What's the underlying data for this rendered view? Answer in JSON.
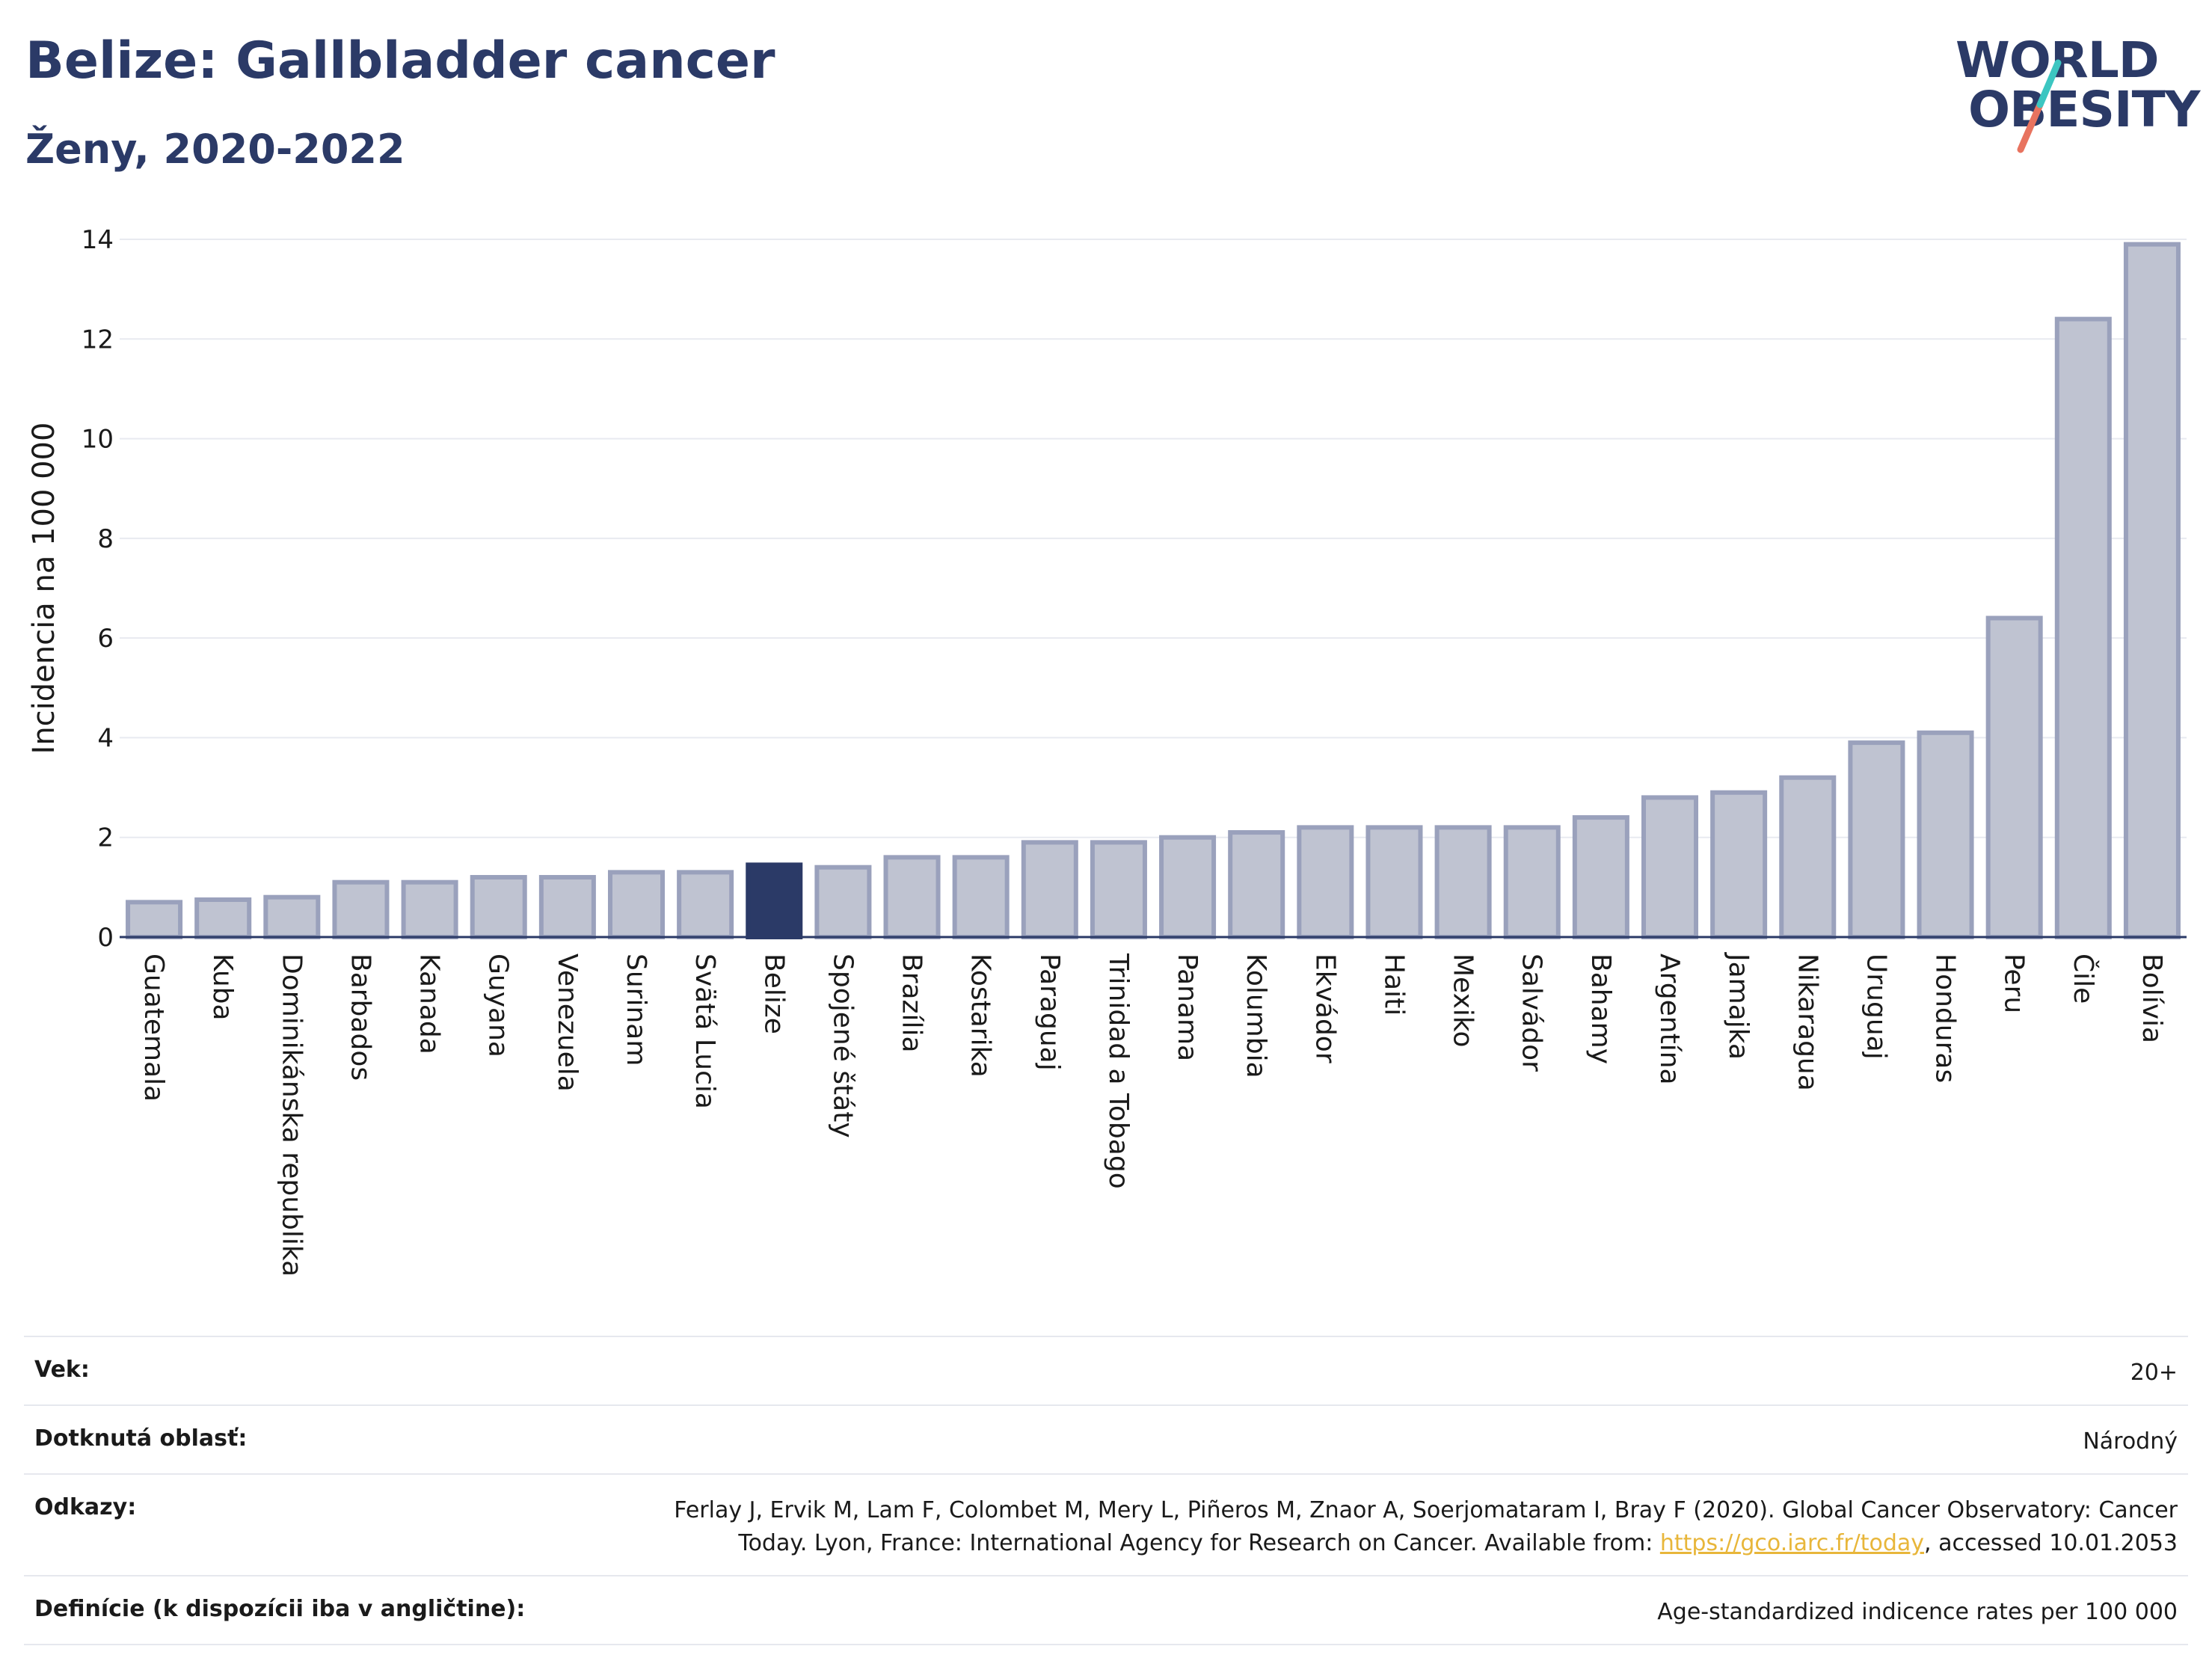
{
  "header": {
    "title": "Belize: Gallbladder cancer",
    "subtitle": "Ženy, 2020-2022",
    "logo_line1": "WORLD",
    "logo_line2": "OBESITY"
  },
  "colors": {
    "title": "#2b3a67",
    "bar": "#bfc3d1",
    "bar_border": "#9aa1bc",
    "highlight": "#2b3a67",
    "logo_teal": "#3cc6c1",
    "logo_coral": "#e8735f",
    "link": "#e8b63a"
  },
  "chart_data": {
    "type": "bar",
    "ylabel": "Incidencia na 100 000",
    "ylim": [
      0,
      14
    ],
    "yticks": [
      0,
      2,
      4,
      6,
      8,
      10,
      12,
      14
    ],
    "grid": true,
    "highlight": "Belize",
    "categories": [
      "Guatemala",
      "Kuba",
      "Dominikánska republika",
      "Barbados",
      "Kanada",
      "Guyana",
      "Venezuela",
      "Surinam",
      "Svätá Lucia",
      "Belize",
      "Spojené štáty",
      "Brazília",
      "Kostarika",
      "Paraguaj",
      "Trinidad a Tobago",
      "Panama",
      "Kolumbia",
      "Ekvádor",
      "Haiti",
      "Mexiko",
      "Salvádor",
      "Bahamy",
      "Argentína",
      "Jamajka",
      "Nikaragua",
      "Uruguaj",
      "Honduras",
      "Peru",
      "Čile",
      "Bolívia"
    ],
    "values": [
      0.7,
      0.75,
      0.8,
      1.1,
      1.1,
      1.2,
      1.2,
      1.3,
      1.3,
      1.45,
      1.4,
      1.6,
      1.6,
      1.9,
      1.9,
      2.0,
      2.1,
      2.2,
      2.2,
      2.2,
      2.2,
      2.4,
      2.8,
      2.9,
      3.2,
      3.9,
      4.1,
      6.4,
      12.4,
      13.9
    ]
  },
  "meta": {
    "age_label": "Vek:",
    "age_value": "20+",
    "area_label": "Dotknutá oblasť:",
    "area_value": "Národný",
    "refs_label": "Odkazy:",
    "refs_line1": "Ferlay J, Ervik M, Lam F, Colombet M, Mery L, Piñeros M, Znaor A, Soerjomataram I, Bray F (2020). Global Cancer Observatory: Cancer",
    "refs_line2_pre": "Today. Lyon, France: International Agency for Research on Cancer. Available from: ",
    "refs_link": "https://gco.iarc.fr/today",
    "refs_line2_post": ", accessed 10.01.2053",
    "def_label": "Definície (k dispozícii iba v angličtine):",
    "def_value": "Age-standardized indicence rates per 100 000"
  }
}
